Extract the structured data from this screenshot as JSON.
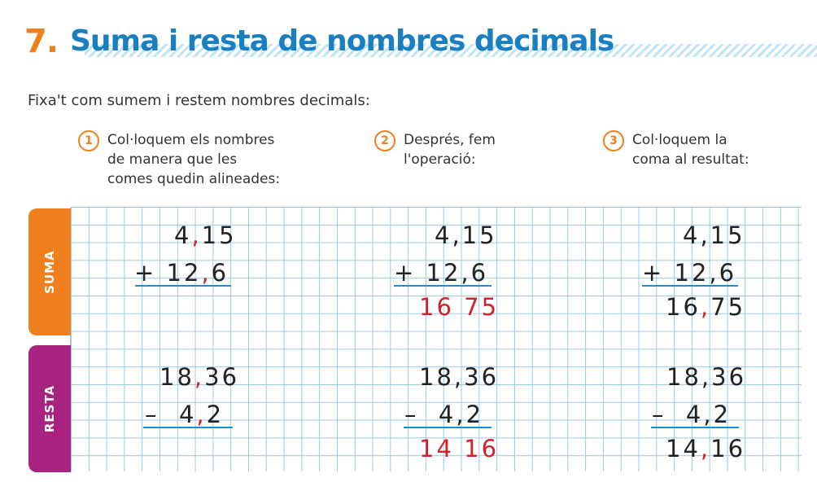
{
  "title": {
    "number": "7.",
    "text": "Suma i resta de nombres decimals"
  },
  "intro": "Fixa't com sumem i restem nombres decimals:",
  "steps": [
    {
      "n": "1",
      "text": "Col·loquem els nombres\nde manera que les\ncomes quedin alineades:"
    },
    {
      "n": "2",
      "text": "Després, fem\nl'operació:"
    },
    {
      "n": "3",
      "text": "Col·loquem la\ncoma al resultat:"
    }
  ],
  "tabs": {
    "suma": "SUMA",
    "resta": "RESTA"
  },
  "colors": {
    "orange": "#f07f1d",
    "blue": "#1a7fc1",
    "purple": "#a7237f",
    "red": "#d1222a",
    "grid": "#9cc9e8"
  },
  "suma": {
    "col1": {
      "a_int": "4",
      "a_comma": ",",
      "a_dec": "15",
      "op": "+ ",
      "b_int": "12",
      "b_comma": ",",
      "b_dec": "6"
    },
    "col2": {
      "a": "4,15",
      "b": "+ 12,6",
      "result": "16 75"
    },
    "col3": {
      "a": "4,15",
      "b": "+ 12,6",
      "r_int": "16",
      "r_comma": ",",
      "r_dec": "75"
    }
  },
  "resta": {
    "col1": {
      "a_int": "18",
      "a_comma": ",",
      "a_dec": "36",
      "op": "–  ",
      "b_int": "4",
      "b_comma": ",",
      "b_dec": "2"
    },
    "col2": {
      "a": "18,36",
      "b": "–  4,2",
      "result": "14 16"
    },
    "col3": {
      "a": "18,36",
      "b": "–  4,2",
      "r_int": "14",
      "r_comma": ",",
      "r_dec": "16"
    }
  }
}
